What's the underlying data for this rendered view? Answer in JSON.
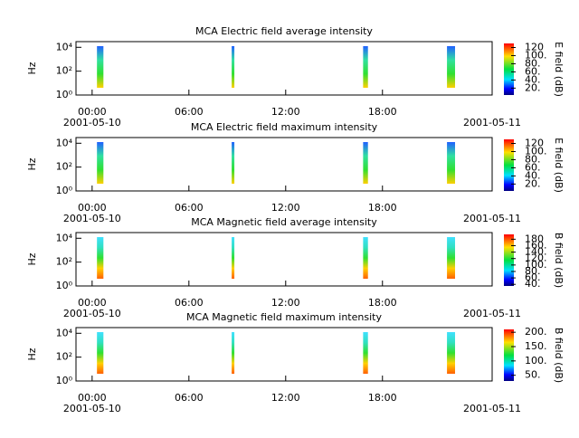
{
  "chart_data": [
    {
      "type": "heatmap",
      "title": "MCA  Electric field average intensity",
      "ylabel": "Hz",
      "colorbar_label": "E field (dB)",
      "log_y": true,
      "ylim": [
        1,
        30000
      ],
      "yticks": [
        {
          "value": 1,
          "label": "10⁰"
        },
        {
          "value": 100,
          "label": "10²"
        },
        {
          "value": 10000,
          "label": "10⁴"
        }
      ],
      "xlim": [
        -1,
        24.8
      ],
      "xticks": [
        {
          "value": 0,
          "label": "00:00"
        },
        {
          "value": 6,
          "label": "06:00"
        },
        {
          "value": 12,
          "label": "12:00"
        },
        {
          "value": 18,
          "label": "18:00"
        }
      ],
      "start_date": "2001-05-10",
      "end_date": "2001-05-11",
      "bursts": [
        [
          0.3,
          0.7
        ],
        [
          8.65,
          8.8
        ],
        [
          16.8,
          17.1
        ],
        [
          22.0,
          22.5
        ]
      ],
      "burst_colors": [
        "#ffd000",
        "#30e030",
        "#30e0a0",
        "#2060ff"
      ],
      "zlim": [
        3,
        130
      ],
      "zticks": [
        {
          "value": 20,
          "label": "20."
        },
        {
          "value": 40,
          "label": "40."
        },
        {
          "value": 60,
          "label": "60."
        },
        {
          "value": 80,
          "label": "80."
        },
        {
          "value": 100,
          "label": "100."
        },
        {
          "value": 120,
          "label": "120"
        }
      ]
    },
    {
      "type": "heatmap",
      "title": "MCA  Electric field maximum intensity",
      "ylabel": "Hz",
      "colorbar_label": "E field (dB)",
      "log_y": true,
      "ylim": [
        1,
        30000
      ],
      "yticks": [
        {
          "value": 1,
          "label": "10⁰"
        },
        {
          "value": 100,
          "label": "10²"
        },
        {
          "value": 10000,
          "label": "10⁴"
        }
      ],
      "xlim": [
        -1,
        24.8
      ],
      "xticks": [
        {
          "value": 0,
          "label": "00:00"
        },
        {
          "value": 6,
          "label": "06:00"
        },
        {
          "value": 12,
          "label": "12:00"
        },
        {
          "value": 18,
          "label": "18:00"
        }
      ],
      "start_date": "2001-05-10",
      "end_date": "2001-05-11",
      "bursts": [
        [
          0.3,
          0.7
        ],
        [
          8.65,
          8.8
        ],
        [
          16.8,
          17.1
        ],
        [
          22.0,
          22.5
        ]
      ],
      "burst_colors": [
        "#ffd000",
        "#30e030",
        "#30e0a0",
        "#2060ff"
      ],
      "zlim": [
        3,
        130
      ],
      "zticks": [
        {
          "value": 20,
          "label": "20."
        },
        {
          "value": 40,
          "label": "40."
        },
        {
          "value": 60,
          "label": "60."
        },
        {
          "value": 80,
          "label": "80."
        },
        {
          "value": 100,
          "label": "100."
        },
        {
          "value": 120,
          "label": "120"
        }
      ]
    },
    {
      "type": "heatmap",
      "title": "MCA  Magnetic field average intensity",
      "ylabel": "Hz",
      "colorbar_label": "B field (dB)",
      "log_y": true,
      "ylim": [
        1,
        30000
      ],
      "yticks": [
        {
          "value": 1,
          "label": "10⁰"
        },
        {
          "value": 100,
          "label": "10²"
        },
        {
          "value": 10000,
          "label": "10⁴"
        }
      ],
      "xlim": [
        -1,
        24.8
      ],
      "xticks": [
        {
          "value": 0,
          "label": "00:00"
        },
        {
          "value": 6,
          "label": "06:00"
        },
        {
          "value": 12,
          "label": "12:00"
        },
        {
          "value": 18,
          "label": "18:00"
        }
      ],
      "start_date": "2001-05-10",
      "end_date": "2001-05-11",
      "bursts": [
        [
          0.3,
          0.7
        ],
        [
          8.65,
          8.8
        ],
        [
          16.8,
          17.1
        ],
        [
          22.0,
          22.5
        ]
      ],
      "burst_colors": [
        "#ff6000",
        "#ffd000",
        "#30e030",
        "#30e0c0",
        "#40e0ff"
      ],
      "zlim": [
        35,
        195
      ],
      "zticks": [
        {
          "value": 40,
          "label": "40."
        },
        {
          "value": 60,
          "label": "60."
        },
        {
          "value": 80,
          "label": "80."
        },
        {
          "value": 100,
          "label": "100."
        },
        {
          "value": 120,
          "label": "120."
        },
        {
          "value": 140,
          "label": "140."
        },
        {
          "value": 160,
          "label": "160."
        },
        {
          "value": 180,
          "label": "180"
        }
      ]
    },
    {
      "type": "heatmap",
      "title": "MCA  Magnetic field maximum intensity",
      "ylabel": "Hz",
      "colorbar_label": "B field (dB)",
      "log_y": true,
      "ylim": [
        1,
        30000
      ],
      "yticks": [
        {
          "value": 1,
          "label": "10⁰"
        },
        {
          "value": 100,
          "label": "10²"
        },
        {
          "value": 10000,
          "label": "10⁴"
        }
      ],
      "xlim": [
        -1,
        24.8
      ],
      "xticks": [
        {
          "value": 0,
          "label": "00:00"
        },
        {
          "value": 6,
          "label": "06:00"
        },
        {
          "value": 12,
          "label": "12:00"
        },
        {
          "value": 18,
          "label": "18:00"
        }
      ],
      "start_date": "2001-05-10",
      "end_date": "2001-05-11",
      "bursts": [
        [
          0.3,
          0.7
        ],
        [
          8.65,
          8.8
        ],
        [
          16.8,
          17.1
        ],
        [
          22.0,
          22.5
        ]
      ],
      "burst_colors": [
        "#ff6000",
        "#ffd000",
        "#30e030",
        "#30e0c0",
        "#40e0ff"
      ],
      "zlim": [
        30,
        210
      ],
      "zticks": [
        {
          "value": 50,
          "label": "50."
        },
        {
          "value": 100,
          "label": "100."
        },
        {
          "value": 150,
          "label": "150."
        },
        {
          "value": 200,
          "label": "200."
        }
      ]
    }
  ]
}
